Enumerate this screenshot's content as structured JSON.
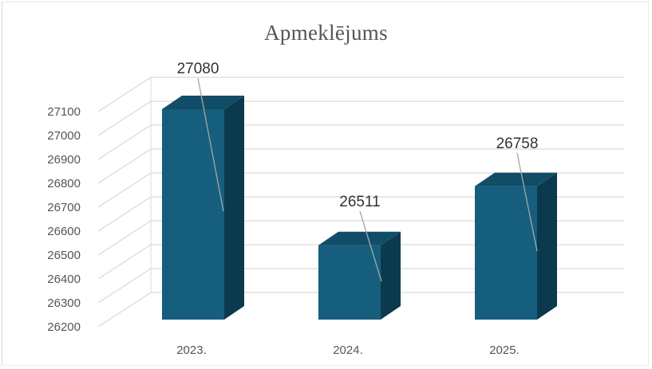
{
  "chart_data": {
    "type": "bar",
    "title": "Apmeklējums",
    "categories": [
      "2023.",
      "2024.",
      "2025."
    ],
    "values": [
      27080,
      26511,
      26758
    ],
    "data_labels": [
      "27080",
      "26511",
      "26758"
    ],
    "ylim": [
      26200,
      27100
    ],
    "yticks": [
      "26200",
      "26300",
      "26400",
      "26500",
      "26600",
      "26700",
      "26800",
      "26900",
      "27000",
      "27100"
    ],
    "xlabel": "",
    "ylabel": "",
    "grid": true,
    "legend": "none",
    "style": "3d-column",
    "colors": {
      "bar_front": "#165e7d",
      "bar_side": "#0b3a4f",
      "bar_top": "#124d68",
      "grid": "#d9d9d9",
      "leader": "#a6a6a6"
    }
  }
}
